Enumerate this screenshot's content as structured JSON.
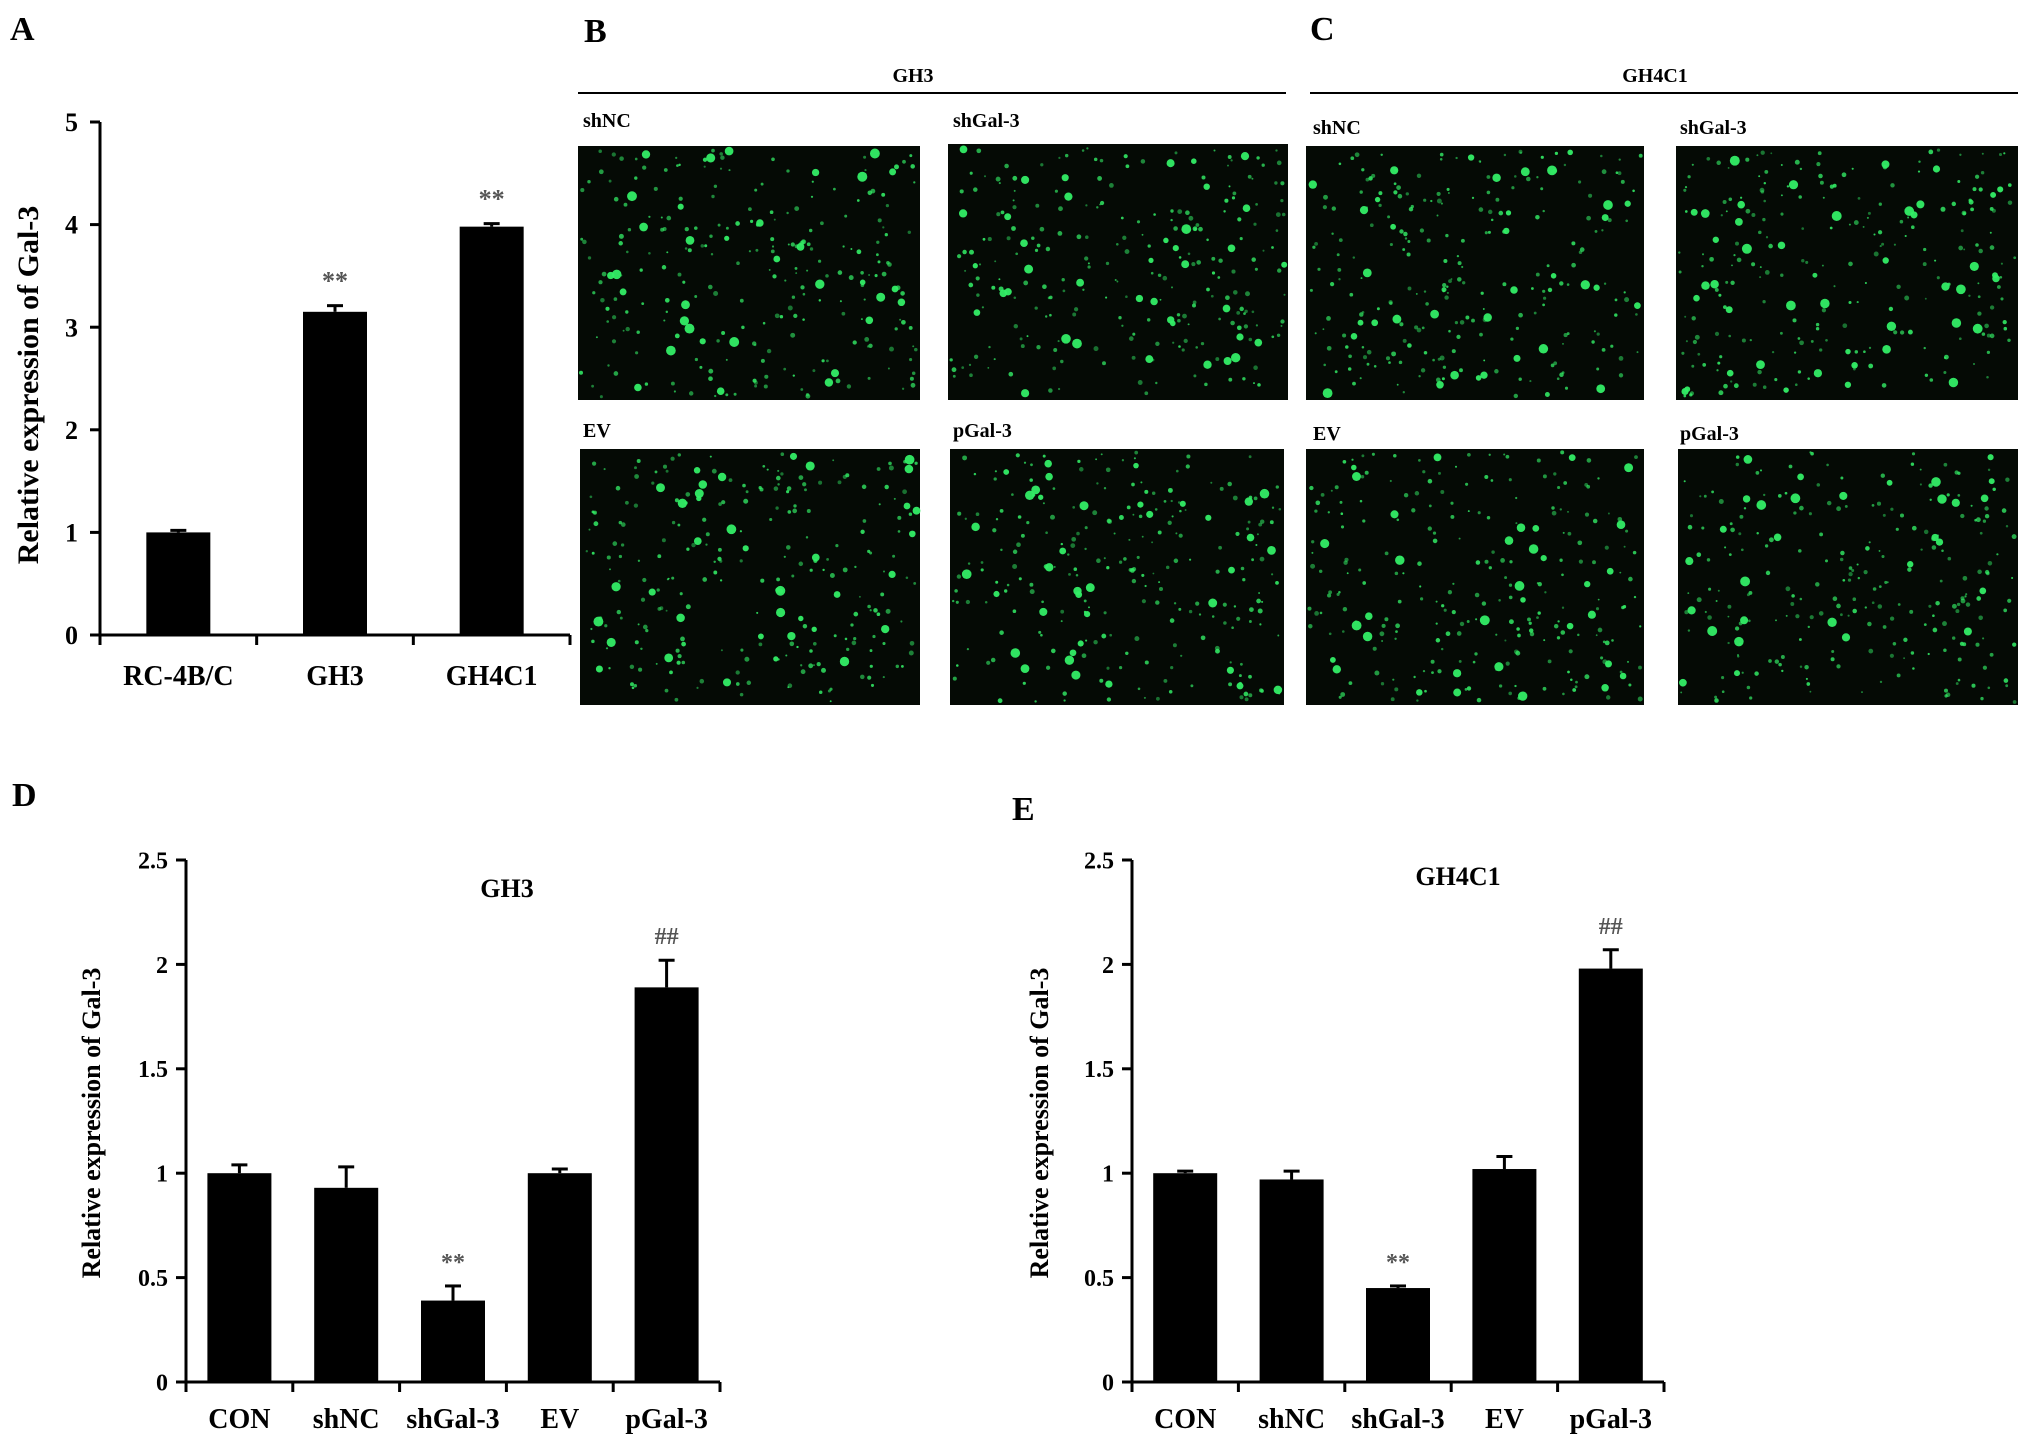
{
  "panels": {
    "a": "A",
    "b": "B",
    "c": "C",
    "d": "D",
    "e": "E"
  },
  "microscopy": {
    "b": {
      "group": "GH3",
      "images": [
        {
          "label": "shNC"
        },
        {
          "label": "shGal-3"
        },
        {
          "label": "EV"
        },
        {
          "label": "pGal-3"
        }
      ]
    },
    "c": {
      "group": "GH4C1",
      "images": [
        {
          "label": "shNC"
        },
        {
          "label": "shGal-3"
        },
        {
          "label": "EV"
        },
        {
          "label": "pGal-3"
        }
      ]
    },
    "colors": {
      "cell": "#33ee66",
      "background": "#050a05"
    }
  },
  "chart_data": [
    {
      "id": "A",
      "type": "bar",
      "title": "",
      "xlabel": "",
      "ylabel": "Relative expression of Gal-3",
      "categories": [
        "RC-4B/C",
        "GH3",
        "GH4C1"
      ],
      "values": [
        1.0,
        3.15,
        3.98
      ],
      "errors": [
        0.02,
        0.06,
        0.03
      ],
      "annotations": [
        "",
        "**",
        "**"
      ],
      "ylim": [
        0,
        5
      ],
      "yticks": [
        "0",
        "1",
        "2",
        "3",
        "4",
        "5"
      ],
      "grid": false,
      "bar_color": "#000000"
    },
    {
      "id": "D",
      "type": "bar",
      "title": "GH3",
      "xlabel": "",
      "ylabel": "Relative expression of Gal-3",
      "categories": [
        "CON",
        "shNC",
        "shGal-3",
        "EV",
        "pGal-3"
      ],
      "values": [
        1.0,
        0.93,
        0.39,
        1.0,
        1.89
      ],
      "errors": [
        0.04,
        0.1,
        0.07,
        0.02,
        0.13
      ],
      "annotations": [
        "",
        "",
        "**",
        "",
        "##"
      ],
      "ylim": [
        0,
        2.5
      ],
      "yticks": [
        "0",
        "0.5",
        "1",
        "1.5",
        "2",
        "2.5"
      ],
      "grid": false,
      "bar_color": "#000000"
    },
    {
      "id": "E",
      "type": "bar",
      "title": "GH4C1",
      "xlabel": "",
      "ylabel": "Relative expression of Gal-3",
      "categories": [
        "CON",
        "shNC",
        "shGal-3",
        "EV",
        "pGal-3"
      ],
      "values": [
        1.0,
        0.97,
        0.45,
        1.02,
        1.98
      ],
      "errors": [
        0.01,
        0.04,
        0.01,
        0.06,
        0.09
      ],
      "annotations": [
        "",
        "",
        "**",
        "",
        "##"
      ],
      "ylim": [
        0,
        2.5
      ],
      "yticks": [
        "0",
        "0.5",
        "1",
        "1.5",
        "2",
        "2.5"
      ],
      "grid": false,
      "bar_color": "#000000"
    }
  ]
}
